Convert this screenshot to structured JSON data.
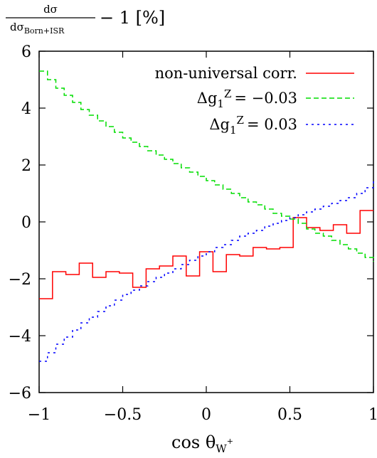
{
  "chart_data": {
    "type": "line",
    "ylabel": {
      "fraction_numerator": "dσ",
      "fraction_denominator_prefix": "dσ",
      "fraction_denominator_subscript": "Born+ISR",
      "suffix": "− 1 [%]"
    },
    "xlabel": {
      "main": "cos θ",
      "subscript": "W",
      "superscript": "+"
    },
    "xlim": [
      -1,
      1
    ],
    "ylim": [
      -6,
      6
    ],
    "x_ticks": [
      -1,
      -0.5,
      0,
      0.5,
      1
    ],
    "x_tick_labels": [
      "−1",
      "−0.5",
      "0",
      "0.5",
      "1"
    ],
    "y_ticks": [
      -6,
      -4,
      -2,
      0,
      2,
      4,
      6
    ],
    "y_tick_labels": [
      "−6",
      "−4",
      "−2",
      "0",
      "2",
      "4",
      "6"
    ],
    "legend_position": "top-right",
    "series": [
      {
        "name": "non-universal corr.",
        "color": "#ff0000",
        "style": "solid",
        "step": true,
        "bin_edges": [
          -1,
          -0.92,
          -0.84,
          -0.76,
          -0.68,
          -0.6,
          -0.52,
          -0.44,
          -0.36,
          -0.28,
          -0.2,
          -0.12,
          -0.04,
          0.04,
          0.12,
          0.2,
          0.28,
          0.36,
          0.44,
          0.52,
          0.6,
          0.68,
          0.76,
          0.84,
          0.92,
          1
        ],
        "values": [
          -2.7,
          -1.75,
          -1.85,
          -1.45,
          -1.95,
          -1.75,
          -1.8,
          -2.3,
          -1.65,
          -1.55,
          -1.2,
          -1.9,
          -1.05,
          -1.75,
          -1.15,
          -1.2,
          -0.9,
          -0.95,
          -0.9,
          0.15,
          -0.2,
          -0.3,
          -0.1,
          -0.4,
          0.4
        ]
      },
      {
        "name_prefix": "Δg",
        "name_subscript": "1",
        "name_superscript": "Z",
        "name_value": "= −0.03",
        "color": "#00dd00",
        "style": "dashed",
        "x": [
          -1,
          -0.95,
          -0.9,
          -0.85,
          -0.8,
          -0.75,
          -0.7,
          -0.65,
          -0.6,
          -0.55,
          -0.5,
          -0.45,
          -0.4,
          -0.35,
          -0.3,
          -0.25,
          -0.2,
          -0.15,
          -0.1,
          -0.05,
          0,
          0.05,
          0.1,
          0.15,
          0.2,
          0.25,
          0.3,
          0.35,
          0.4,
          0.45,
          0.5,
          0.55,
          0.6,
          0.65,
          0.7,
          0.75,
          0.8,
          0.85,
          0.9,
          0.95,
          1
        ],
        "values": [
          5.3,
          5.0,
          4.7,
          4.45,
          4.2,
          3.95,
          3.75,
          3.55,
          3.35,
          3.15,
          2.95,
          2.8,
          2.65,
          2.5,
          2.35,
          2.2,
          2.05,
          1.9,
          1.75,
          1.6,
          1.45,
          1.3,
          1.15,
          1.0,
          0.85,
          0.7,
          0.6,
          0.45,
          0.3,
          0.2,
          0.1,
          -0.05,
          -0.25,
          -0.4,
          -0.5,
          -0.65,
          -0.8,
          -0.95,
          -1.1,
          -1.25,
          -1.4
        ]
      },
      {
        "name_prefix": "Δg",
        "name_subscript": "1",
        "name_superscript": "Z",
        "name_value": "= 0.03",
        "color": "#0000ff",
        "style": "dotted",
        "x": [
          -1,
          -0.95,
          -0.9,
          -0.85,
          -0.8,
          -0.75,
          -0.7,
          -0.65,
          -0.6,
          -0.55,
          -0.5,
          -0.45,
          -0.4,
          -0.35,
          -0.3,
          -0.25,
          -0.2,
          -0.15,
          -0.1,
          -0.05,
          0,
          0.05,
          0.1,
          0.15,
          0.2,
          0.25,
          0.3,
          0.35,
          0.4,
          0.45,
          0.5,
          0.55,
          0.6,
          0.65,
          0.7,
          0.75,
          0.8,
          0.85,
          0.9,
          0.95,
          1
        ],
        "values": [
          -4.9,
          -4.6,
          -4.3,
          -4.05,
          -3.8,
          -3.55,
          -3.35,
          -3.15,
          -2.95,
          -2.75,
          -2.55,
          -2.4,
          -2.25,
          -2.1,
          -1.95,
          -1.8,
          -1.65,
          -1.5,
          -1.35,
          -1.2,
          -1.05,
          -0.9,
          -0.8,
          -0.65,
          -0.5,
          -0.4,
          -0.3,
          -0.15,
          -0.05,
          0.05,
          0.15,
          0.25,
          0.35,
          0.45,
          0.55,
          0.65,
          0.75,
          0.85,
          1.0,
          1.2,
          1.45
        ]
      }
    ]
  }
}
